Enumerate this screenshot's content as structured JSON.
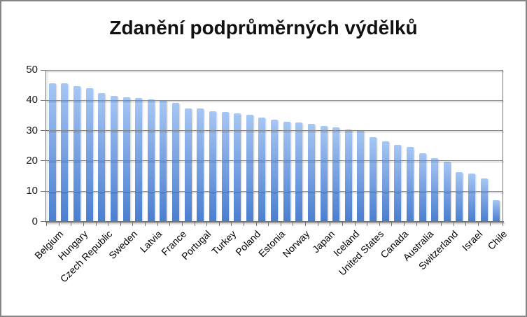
{
  "chart_data": {
    "type": "bar",
    "title": "Zdanění podprůměrných výdělků",
    "categories": [
      "Belgium",
      "",
      "Hungary",
      "",
      "Czech Republic",
      "",
      "Sweden",
      "",
      "Latvia",
      "",
      "France",
      "",
      "Portugal",
      "",
      "Turkey",
      "",
      "Poland",
      "",
      "Estonia",
      "",
      "Norway",
      "",
      "Japan",
      "",
      "Iceland",
      "",
      "United States",
      "",
      "Canada",
      "",
      "Australia",
      "",
      "Switzerland",
      "",
      "Israel",
      "",
      "Chile"
    ],
    "values": [
      45.7,
      45.6,
      44.7,
      44.0,
      42.3,
      41.5,
      41.0,
      40.7,
      40.3,
      40.0,
      39.2,
      37.4,
      37.2,
      36.4,
      36.1,
      35.8,
      35.2,
      34.3,
      33.5,
      33.0,
      32.8,
      32.2,
      31.5,
      31.0,
      30.3,
      30.1,
      27.8,
      26.4,
      25.3,
      24.7,
      22.5,
      20.8,
      19.7,
      16.4,
      15.8,
      14.1,
      7.0
    ],
    "xlabel": "",
    "ylabel": "",
    "ylim": [
      0,
      50
    ],
    "yticks": [
      0,
      10,
      20,
      30,
      40,
      50
    ],
    "grid": true,
    "legend_position": "none",
    "colors": {
      "bar_top": "#a6c7f4",
      "bar_bottom": "#4a7fd0",
      "gridline": "#8a8a8a",
      "axis": "#747474",
      "title_text": "#111111",
      "tick_text": "#000000",
      "frame_border": "#858585",
      "background": "#ffffff"
    }
  }
}
